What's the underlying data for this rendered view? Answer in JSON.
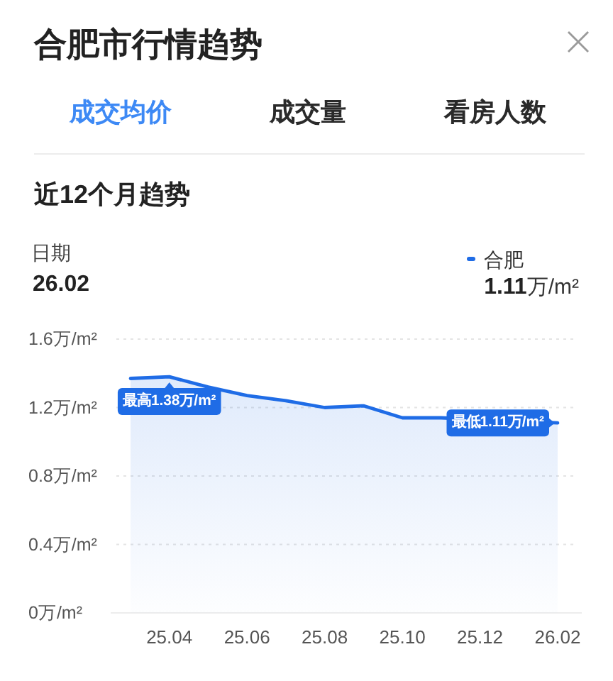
{
  "chart_data": {
    "type": "area",
    "title": "合肥市行情趋势",
    "subtitle": "近12个月趋势",
    "categories": [
      null,
      "25.04",
      null,
      "25.06",
      null,
      "25.08",
      null,
      "25.10",
      null,
      "25.12",
      null,
      "26.02"
    ],
    "series": [
      {
        "name": "合肥",
        "color": "#1f6ce6",
        "values": [
          1.37,
          1.38,
          1.32,
          1.27,
          1.24,
          1.2,
          1.21,
          1.14,
          1.14,
          null,
          null,
          1.11
        ]
      }
    ],
    "ylim": [
      0,
      1.6
    ],
    "yticks": [
      {
        "value": 0,
        "label": "0万/m²"
      },
      {
        "value": 0.4,
        "label": "0.4万/m²"
      },
      {
        "value": 0.8,
        "label": "0.8万/m²"
      },
      {
        "value": 1.2,
        "label": "1.2万/m²"
      },
      {
        "value": 1.6,
        "label": "1.6万/m²"
      }
    ],
    "grid": "y",
    "legend": "top right",
    "annotations": [
      "成交均价",
      "成交量",
      "看房人数",
      "日期",
      "26.02",
      "1.11万/m²",
      {
        "text": "最高1.38万/m²",
        "x": "25.04",
        "y": 1.38
      },
      {
        "text": "最低1.11万/m²",
        "x": "26.02",
        "y": 1.11
      }
    ]
  }
}
